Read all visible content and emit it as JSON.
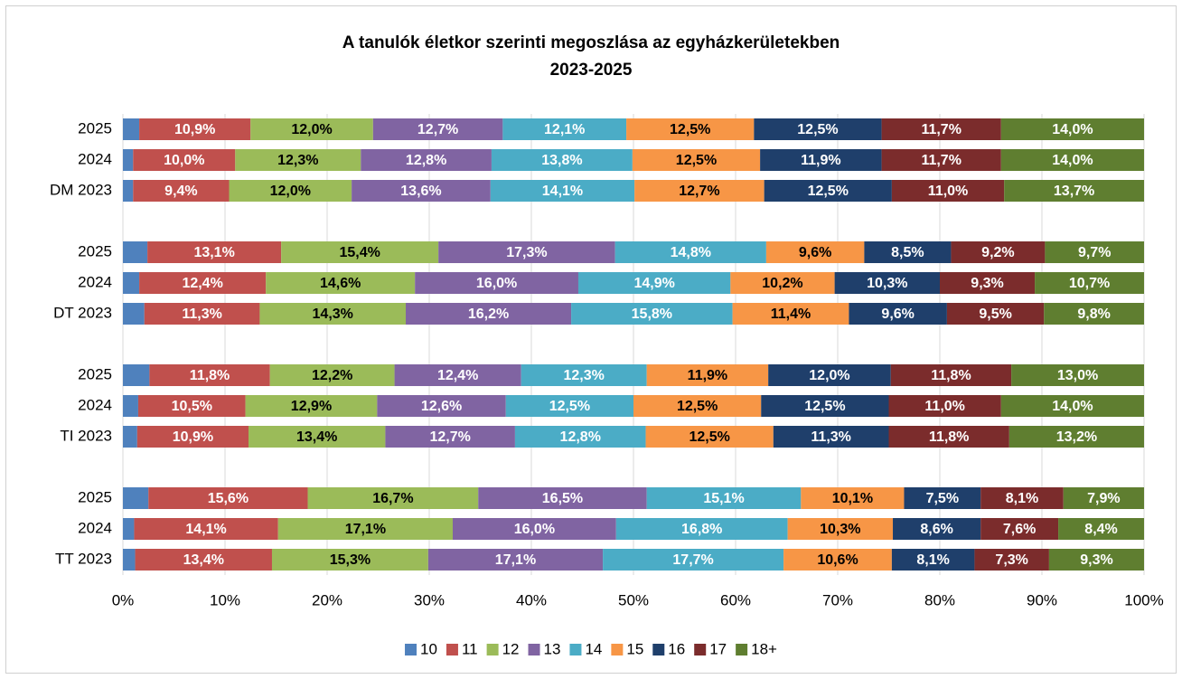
{
  "chart_data": {
    "type": "stacked_barh_percent",
    "title": "A tanulók életkor szerinti megoszlása az egyházkerületekben",
    "subtitle": "2023-2025",
    "categories": [
      "2025",
      "2024",
      "DM 2023",
      null,
      "2025",
      "2024",
      "DT 2023",
      null,
      "2025",
      "2024",
      "TI 2023",
      null,
      "2025",
      "2024",
      "TT 2023"
    ],
    "xlim": [
      0,
      100
    ],
    "xticks": [
      {
        "value": 0,
        "label": "0%"
      },
      {
        "value": 10,
        "label": "10%"
      },
      {
        "value": 20,
        "label": "20%"
      },
      {
        "value": 30,
        "label": "30%"
      },
      {
        "value": 40,
        "label": "40%"
      },
      {
        "value": 50,
        "label": "50%"
      },
      {
        "value": 60,
        "label": "60%"
      },
      {
        "value": 70,
        "label": "70%"
      },
      {
        "value": 80,
        "label": "80%"
      },
      {
        "value": 90,
        "label": "90%"
      },
      {
        "value": 100,
        "label": "100%"
      }
    ],
    "grid": true,
    "legend": "bottom",
    "series": [
      {
        "name": "10",
        "color": "#4f81bd",
        "label_color": "#ffffff",
        "values": [
          1.6,
          1.0,
          1.0,
          null,
          2.4,
          1.6,
          2.1,
          null,
          2.6,
          1.5,
          1.4,
          null,
          2.5,
          1.1,
          1.2
        ]
      },
      {
        "name": "11",
        "color": "#c0504d",
        "label_color": "#ffffff",
        "values": [
          10.9,
          10.0,
          9.4,
          null,
          13.1,
          12.4,
          11.3,
          null,
          11.8,
          10.5,
          10.9,
          null,
          15.6,
          14.1,
          13.4
        ],
        "value_labels": [
          "10,9%",
          "10,0%",
          "9,4%",
          null,
          "13,1%",
          "12,4%",
          "11,3%",
          null,
          "11,8%",
          "10,5%",
          "10,9%",
          null,
          "15,6%",
          "14,1%",
          "13,4%"
        ]
      },
      {
        "name": "12",
        "color": "#9bbb59",
        "label_color": "#000000",
        "values": [
          12.0,
          12.3,
          12.0,
          null,
          15.4,
          14.6,
          14.3,
          null,
          12.2,
          12.9,
          13.4,
          null,
          16.7,
          17.1,
          15.3
        ],
        "value_labels": [
          "12,0%",
          "12,3%",
          "12,0%",
          null,
          "15,4%",
          "14,6%",
          "14,3%",
          null,
          "12,2%",
          "12,9%",
          "13,4%",
          null,
          "16,7%",
          "17,1%",
          "15,3%"
        ]
      },
      {
        "name": "13",
        "color": "#8064a2",
        "label_color": "#ffffff",
        "values": [
          12.7,
          12.8,
          13.6,
          null,
          17.3,
          16.0,
          16.2,
          null,
          12.4,
          12.6,
          12.7,
          null,
          16.5,
          16.0,
          17.1
        ],
        "value_labels": [
          "12,7%",
          "12,8%",
          "13,6%",
          null,
          "17,3%",
          "16,0%",
          "16,2%",
          null,
          "12,4%",
          "12,6%",
          "12,7%",
          null,
          "16,5%",
          "16,0%",
          "17,1%"
        ]
      },
      {
        "name": "14",
        "color": "#4bacc6",
        "label_color": "#ffffff",
        "values": [
          12.1,
          13.8,
          14.1,
          null,
          14.8,
          14.9,
          15.8,
          null,
          12.3,
          12.5,
          12.8,
          null,
          15.1,
          16.8,
          17.7
        ],
        "value_labels": [
          "12,1%",
          "13,8%",
          "14,1%",
          null,
          "14,8%",
          "14,9%",
          "15,8%",
          null,
          "12,3%",
          "12,5%",
          "12,8%",
          null,
          "15,1%",
          "16,8%",
          "17,7%"
        ]
      },
      {
        "name": "15",
        "color": "#f79646",
        "label_color": "#000000",
        "values": [
          12.5,
          12.5,
          12.7,
          null,
          9.6,
          10.2,
          11.4,
          null,
          11.9,
          12.5,
          12.5,
          null,
          10.1,
          10.3,
          10.6
        ],
        "value_labels": [
          "12,5%",
          "12,5%",
          "12,7%",
          null,
          "9,6%",
          "10,2%",
          "11,4%",
          null,
          "11,9%",
          "12,5%",
          "12,5%",
          null,
          "10,1%",
          "10,3%",
          "10,6%"
        ]
      },
      {
        "name": "16",
        "color": "#1f3f6b",
        "label_color": "#ffffff",
        "values": [
          12.5,
          11.9,
          12.5,
          null,
          8.5,
          10.3,
          9.6,
          null,
          12.0,
          12.5,
          11.3,
          null,
          7.5,
          8.6,
          8.1
        ],
        "value_labels": [
          "12,5%",
          "11,9%",
          "12,5%",
          null,
          "8,5%",
          "10,3%",
          "9,6%",
          null,
          "12,0%",
          "12,5%",
          "11,3%",
          null,
          "7,5%",
          "8,6%",
          "8,1%"
        ]
      },
      {
        "name": "17",
        "color": "#7b2c2c",
        "label_color": "#ffffff",
        "values": [
          11.7,
          11.7,
          11.0,
          null,
          9.2,
          9.3,
          9.5,
          null,
          11.8,
          11.0,
          11.8,
          null,
          8.1,
          7.6,
          7.3
        ],
        "value_labels": [
          "11,7%",
          "11,7%",
          "11,0%",
          null,
          "9,2%",
          "9,3%",
          "9,5%",
          null,
          "11,8%",
          "11,0%",
          "11,8%",
          null,
          "8,1%",
          "7,6%",
          "7,3%"
        ]
      },
      {
        "name": "18+",
        "color": "#5f7e30",
        "label_color": "#ffffff",
        "values": [
          14.0,
          14.0,
          13.7,
          null,
          9.7,
          10.7,
          9.8,
          null,
          13.0,
          14.0,
          13.2,
          null,
          7.9,
          8.4,
          9.3
        ],
        "value_labels": [
          "14,0%",
          "14,0%",
          "13,7%",
          null,
          "9,7%",
          "10,7%",
          "9,8%",
          null,
          "13,0%",
          "14,0%",
          "13,2%",
          null,
          "7,9%",
          "8,4%",
          "9,3%"
        ]
      }
    ]
  }
}
